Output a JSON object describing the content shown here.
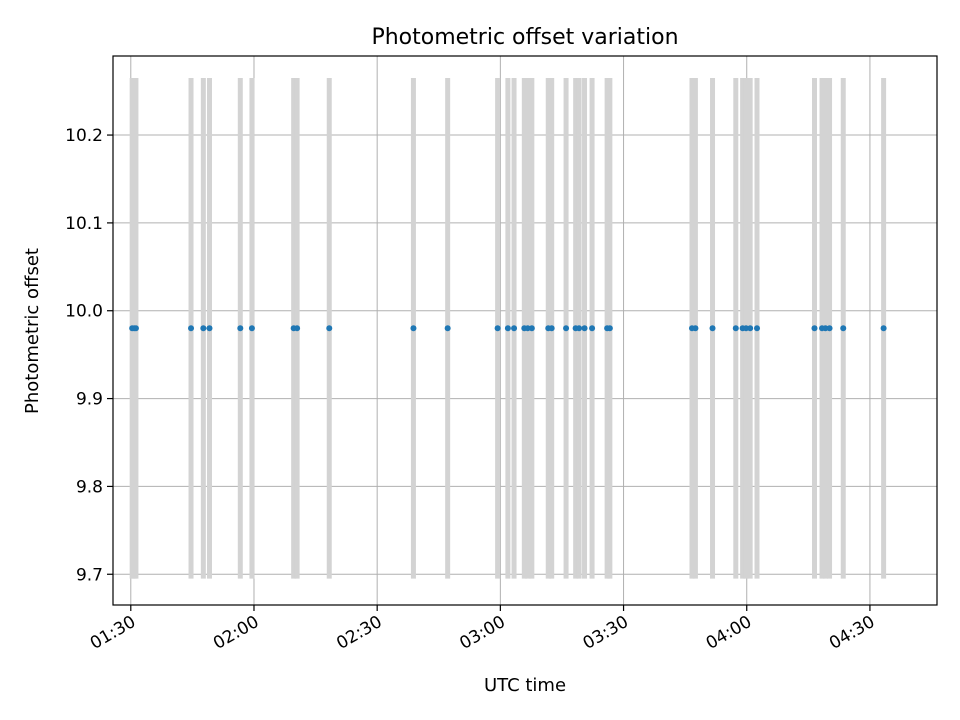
{
  "chart_data": {
    "type": "scatter",
    "title": "Photometric offset variation",
    "xlabel": "UTC time",
    "ylabel": "Photometric offset",
    "x_range": [
      "01:25:40",
      "04:46:20"
    ],
    "y_range": [
      9.665,
      10.29
    ],
    "grid": true,
    "x_ticks": [
      "01:30",
      "02:00",
      "02:30",
      "03:00",
      "03:30",
      "04:00",
      "04:30"
    ],
    "y_ticks": [
      "9.7",
      "9.8",
      "9.9",
      "10.0",
      "10.1",
      "10.2"
    ],
    "error_bar_range": [
      9.695,
      10.265
    ],
    "error_bar_color": "#d3d3d3",
    "point_color": "#1f77b4",
    "series": [
      {
        "y_value": 9.98,
        "x": [
          "01:30:20",
          "01:30:50",
          "01:31:15",
          "01:44:40",
          "01:47:40",
          "01:49:10",
          "01:56:40",
          "01:59:30",
          "02:09:40",
          "02:10:30",
          "02:18:20",
          "02:38:50",
          "02:47:10",
          "02:59:20",
          "03:01:50",
          "03:03:20",
          "03:05:50",
          "03:06:40",
          "03:07:40",
          "03:11:40",
          "03:12:30",
          "03:16:00",
          "03:18:20",
          "03:19:10",
          "03:20:30",
          "03:22:20",
          "03:26:00",
          "03:26:40",
          "03:46:40",
          "03:47:30",
          "03:51:40",
          "03:57:20",
          "03:59:00",
          "03:59:50",
          "04:00:50",
          "04:02:30",
          "04:16:30",
          "04:18:20",
          "04:19:10",
          "04:20:10",
          "04:23:30",
          "04:33:20"
        ]
      }
    ]
  }
}
